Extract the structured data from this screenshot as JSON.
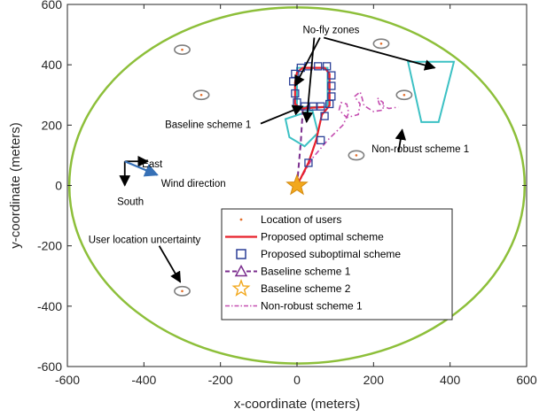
{
  "chart_data": {
    "type": "line",
    "xlabel": "x-coordinate (meters)",
    "ylabel": "y-coordinate (meters)",
    "xlim": [
      -600,
      600
    ],
    "ylim": [
      -600,
      600
    ],
    "xticks": [
      -600,
      -400,
      -200,
      0,
      200,
      400,
      600
    ],
    "yticks": [
      -600,
      -400,
      -200,
      0,
      200,
      400,
      600
    ],
    "grid": false,
    "legend_position": "lower-center",
    "colors": {
      "boundary": "#8DBF3A",
      "optimal": "#E8202A",
      "suboptimal": "#2B3F97",
      "baseline1": "#7B2D8E",
      "baseline2": "#F2A81D",
      "nonrobust": "#C44DB0",
      "nofly": "#3CC1C4",
      "users": "#E36E2A",
      "uncertainty": "#7F7F7F",
      "wind": "#3670B6",
      "arrow": "#000000"
    },
    "boundary_ellipse": {
      "cx": 0,
      "cy": 0,
      "rx": 595,
      "ry": 590
    },
    "users": [
      {
        "x": -300,
        "y": 450
      },
      {
        "x": 220,
        "y": 470
      },
      {
        "x": -250,
        "y": 300
      },
      {
        "x": 280,
        "y": 300
      },
      {
        "x": 155,
        "y": 100
      },
      {
        "x": -300,
        "y": -350
      }
    ],
    "uncertainty": {
      "rx": 20,
      "ry": 15
    },
    "no_fly_zones": [
      {
        "shape": "rectangle",
        "points": [
          [
            0,
            260
          ],
          [
            80,
            260
          ],
          [
            80,
            390
          ],
          [
            0,
            390
          ]
        ]
      },
      {
        "shape": "pentagon",
        "points": [
          [
            -30,
            220
          ],
          [
            40,
            250
          ],
          [
            55,
            175
          ],
          [
            20,
            130
          ],
          [
            -20,
            160
          ]
        ]
      },
      {
        "shape": "trapezoid",
        "points": [
          [
            290,
            410
          ],
          [
            410,
            410
          ],
          [
            370,
            210
          ],
          [
            325,
            210
          ]
        ]
      }
    ],
    "series": [
      {
        "name": "Location of users",
        "marker": "dot",
        "values": [
          [
            -300,
            450
          ],
          [
            220,
            470
          ],
          [
            -250,
            300
          ],
          [
            280,
            300
          ],
          [
            155,
            100
          ],
          [
            -300,
            -350
          ]
        ]
      },
      {
        "name": "Proposed optimal scheme",
        "style": "solid",
        "values": [
          [
            0,
            0
          ],
          [
            30,
            75
          ],
          [
            50,
            150
          ],
          [
            65,
            235
          ],
          [
            72,
            245
          ],
          [
            85,
            265
          ],
          [
            85,
            370
          ],
          [
            72,
            390
          ],
          [
            15,
            390
          ],
          [
            0,
            375
          ],
          [
            -5,
            340
          ],
          [
            -5,
            270
          ],
          [
            10,
            255
          ],
          [
            40,
            258
          ],
          [
            72,
            260
          ]
        ]
      },
      {
        "name": "Proposed suboptimal scheme",
        "marker": "square",
        "values": [
          [
            30,
            75
          ],
          [
            62,
            150
          ],
          [
            72,
            230
          ],
          [
            85,
            270
          ],
          [
            90,
            295
          ],
          [
            90,
            330
          ],
          [
            90,
            365
          ],
          [
            78,
            395
          ],
          [
            55,
            395
          ],
          [
            30,
            395
          ],
          [
            10,
            390
          ],
          [
            -5,
            370
          ],
          [
            -10,
            345
          ],
          [
            -5,
            305
          ],
          [
            0,
            275
          ],
          [
            20,
            262
          ],
          [
            42,
            262
          ],
          [
            62,
            262
          ]
        ]
      },
      {
        "name": "Baseline scheme 1",
        "style": "dashed",
        "marker": "triangle",
        "values": [
          [
            0,
            0
          ],
          [
            10,
            145
          ],
          [
            15,
            250
          ],
          [
            30,
            265
          ]
        ]
      },
      {
        "name": "Baseline scheme 2",
        "marker": "star",
        "values": [
          [
            0,
            0
          ]
        ]
      },
      {
        "name": "Non-robust scheme 1",
        "style": "dashdot",
        "values": [
          [
            0,
            0
          ],
          [
            40,
            90
          ],
          [
            80,
            150
          ],
          [
            120,
            200
          ],
          [
            135,
            240
          ],
          [
            130,
            270
          ],
          [
            115,
            275
          ],
          [
            110,
            250
          ],
          [
            130,
            225
          ],
          [
            160,
            235
          ],
          [
            165,
            270
          ],
          [
            150,
            295
          ],
          [
            165,
            310
          ],
          [
            170,
            290
          ],
          [
            175,
            265
          ],
          [
            200,
            245
          ],
          [
            225,
            250
          ],
          [
            225,
            275
          ],
          [
            210,
            290
          ],
          [
            215,
            270
          ],
          [
            240,
            255
          ],
          [
            265,
            260
          ]
        ]
      }
    ],
    "annotations": [
      {
        "text": "No-fly zones",
        "x": 15,
        "y": 505
      },
      {
        "text": "Baseline scheme 1",
        "x": -345,
        "y": 190
      },
      {
        "text": "Non-robust scheme 1",
        "x": 195,
        "y": 110
      },
      {
        "text": "East",
        "x": -405,
        "y": 60
      },
      {
        "text": "Wind direction",
        "x": -355,
        "y": -5
      },
      {
        "text": "South",
        "x": -470,
        "y": -65
      },
      {
        "text": "User location uncertainty",
        "x": -545,
        "y": -190
      }
    ]
  }
}
